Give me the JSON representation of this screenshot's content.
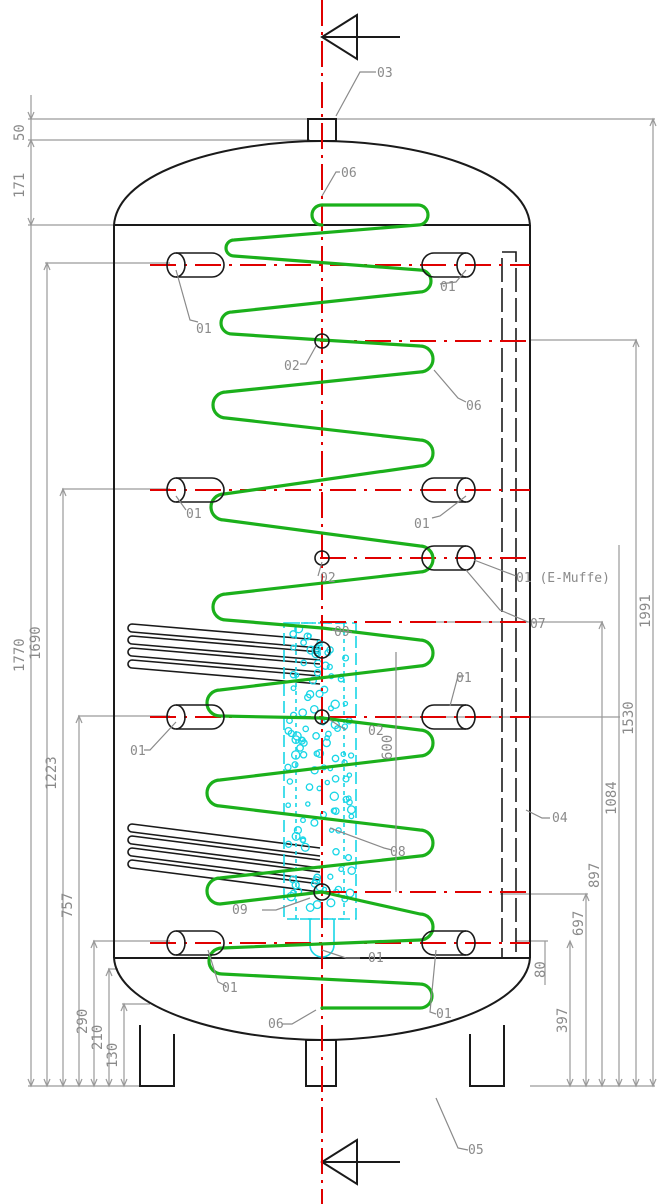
{
  "title": "",
  "labels": {
    "l01": "01",
    "l01_emuffe": "01 (E-Muffe)",
    "l02": "02",
    "l03": "03",
    "l04": "04",
    "l05": "05",
    "l06": "06",
    "l07": "07",
    "l08": "08",
    "l09": "09",
    "d600": "600"
  },
  "dimensions_left": {
    "d50": "50",
    "d171": "171",
    "d1770": "1770",
    "d1690": "1690",
    "d1223": "1223",
    "d757": "757",
    "d290": "290",
    "d210": "210",
    "d130": "130"
  },
  "dimensions_right": {
    "d1991": "1991",
    "d1530": "1530",
    "d1084": "1084",
    "d897": "897",
    "d697": "697",
    "d397": "397",
    "d80": "80"
  },
  "colors": {
    "outline": "#1a1a1a",
    "centerline": "#e00000",
    "coil": "#1bb01b",
    "heater": "#18d6e6",
    "dimension": "#8a8a8a"
  }
}
